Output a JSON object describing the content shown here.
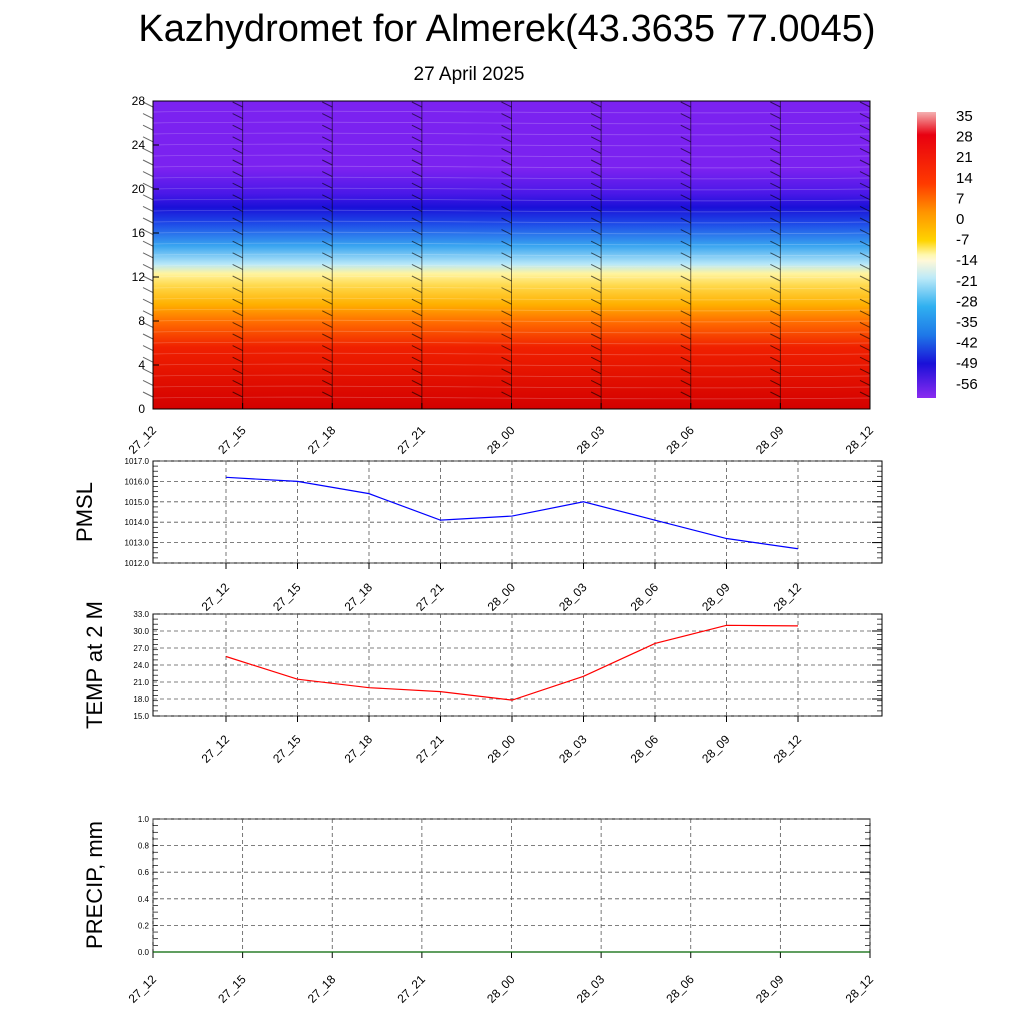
{
  "title": "Kazhydromet for Almerek(43.3635 77.0045)",
  "subtitle": "27 April 2025",
  "chart_data": [
    {
      "type": "heatmap",
      "title": "",
      "y_ticks": [
        "0",
        "4",
        "8",
        "12",
        "16",
        "20",
        "24",
        "28"
      ],
      "ylim": [
        0,
        28
      ],
      "x_ticks": [
        "27_12",
        "27_15",
        "27_18",
        "27_21",
        "28_00",
        "28_03",
        "28_06",
        "28_09",
        "28_12"
      ],
      "colorbar": {
        "labels": [
          "35",
          "28",
          "21",
          "14",
          "7",
          "0",
          "-7",
          "-14",
          "-21",
          "-28",
          "-35",
          "-42",
          "-49",
          "-56"
        ],
        "range": [
          -63,
          35
        ]
      },
      "band_colors": {
        "top": "#7b22f0",
        "level_18": "#1a10d8",
        "level_15": "#38a4f0",
        "level_12": "#fff4a0",
        "level_10": "#ffb000",
        "level_6": "#f02000",
        "bottom": "#d40000"
      }
    },
    {
      "type": "line",
      "ylabel": "PMSL",
      "x": [
        "27_12",
        "27_15",
        "27_18",
        "27_21",
        "28_00",
        "28_03",
        "28_06",
        "28_09",
        "28_12"
      ],
      "values": [
        1016.2,
        1016.0,
        1015.4,
        1014.1,
        1014.3,
        1015.0,
        1014.1,
        1013.2,
        1012.7
      ],
      "ylim": [
        1012.0,
        1017.0
      ],
      "y_ticks": [
        "1012.0",
        "1013.0",
        "1014.0",
        "1015.0",
        "1016.0",
        "1017.0"
      ],
      "line_color": "#0000ff",
      "grid": true
    },
    {
      "type": "line",
      "ylabel": "TEMP at 2 M",
      "x": [
        "27_12",
        "27_15",
        "27_18",
        "27_21",
        "28_00",
        "28_03",
        "28_06",
        "28_09",
        "28_12"
      ],
      "values": [
        25.5,
        21.5,
        20.0,
        19.3,
        17.8,
        22.0,
        27.8,
        31.0,
        30.9
      ],
      "ylim": [
        15.0,
        33.0
      ],
      "y_ticks": [
        "15.0",
        "18.0",
        "21.0",
        "24.0",
        "27.0",
        "30.0",
        "33.0"
      ],
      "line_color": "#ff0000",
      "grid": true
    },
    {
      "type": "line",
      "ylabel": "PRECIP, mm",
      "x": [
        "27_12",
        "27_15",
        "27_18",
        "27_21",
        "28_00",
        "28_03",
        "28_06",
        "28_09",
        "28_12"
      ],
      "values": [
        0,
        0,
        0,
        0,
        0,
        0,
        0,
        0,
        0
      ],
      "ylim": [
        0.0,
        1.0
      ],
      "y_ticks": [
        "0.0",
        "0.2",
        "0.4",
        "0.6",
        "0.8",
        "1.0"
      ],
      "line_color": "#006400",
      "grid": true
    }
  ]
}
